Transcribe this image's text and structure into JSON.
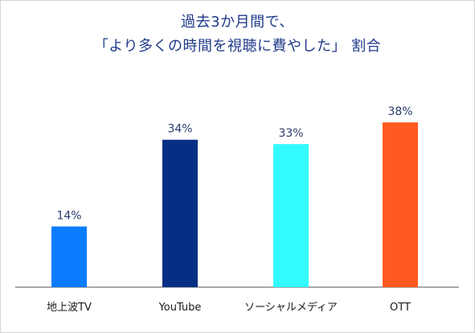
{
  "chart_data": {
    "type": "bar",
    "title_line1": "過去3か月間で、",
    "title_line2": "「より多くの時間を視聴に費やした」 割合",
    "categories": [
      "地上波TV",
      "YouTube",
      "ソーシャルメディア",
      "OTT"
    ],
    "values": [
      14,
      34,
      33,
      38
    ],
    "value_labels": [
      "14%",
      "34%",
      "33%",
      "38%"
    ],
    "colors": [
      "#0a7cff",
      "#062f84",
      "#33fbff",
      "#ff5a1f"
    ],
    "ylim": [
      0,
      40
    ],
    "grid": false
  }
}
